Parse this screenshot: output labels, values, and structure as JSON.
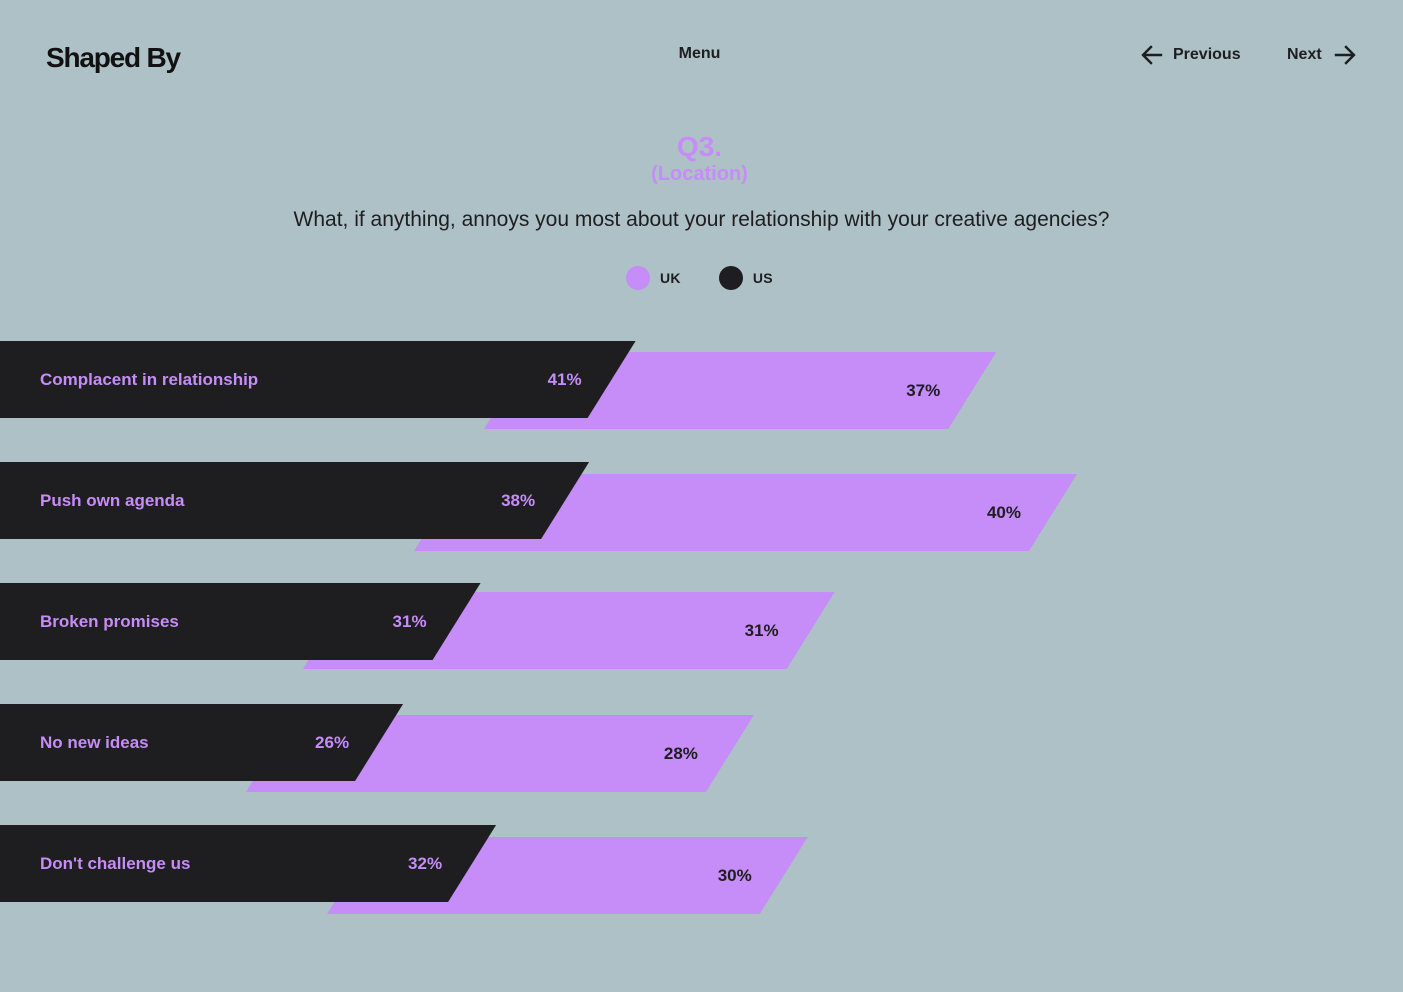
{
  "header": {
    "logo": "Shaped By",
    "menu_label": "Menu",
    "prev_label": "Previous",
    "next_label": "Next"
  },
  "question": {
    "number": "Q3.",
    "subtitle": "(Location)",
    "text": "What, if anything, annoys you most about your relationship with your creative agencies?"
  },
  "colors": {
    "background": "#adc1c6",
    "uk": "#c68cf8",
    "us": "#1e1e20"
  },
  "legend": [
    {
      "label": "UK",
      "color": "#c68cf8"
    },
    {
      "label": "US",
      "color": "#1e1e20"
    }
  ],
  "chart_data": {
    "type": "bar",
    "orientation": "horizontal",
    "categories": [
      "Complacent in relationship",
      "Push own agenda",
      "Broken promises",
      "No new ideas",
      "Don't challenge us"
    ],
    "series": [
      {
        "name": "US",
        "values": [
          41,
          38,
          31,
          26,
          32
        ],
        "labels": [
          "41%",
          "38%",
          "31%",
          "26%",
          "32%"
        ]
      },
      {
        "name": "UK",
        "values": [
          37,
          40,
          31,
          28,
          30
        ],
        "labels": [
          "37%",
          "40%",
          "31%",
          "28%",
          "30%"
        ]
      }
    ],
    "unit": "%"
  }
}
